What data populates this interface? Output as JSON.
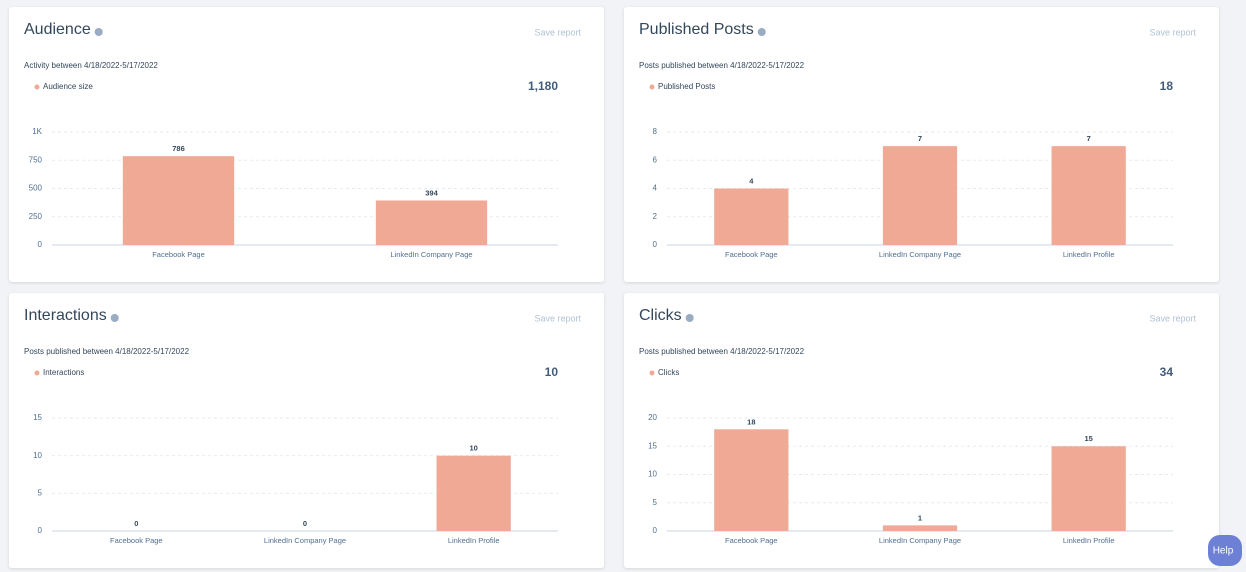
{
  "chart_data": [
    {
      "type": "bar",
      "title": "Audience",
      "action": "Save report",
      "subtitle": "Activity between 4/18/2022-5/17/2022",
      "total": {
        "value": 1180,
        "label": "1,180"
      },
      "categories": [
        "Facebook Page",
        "LinkedIn Company Page"
      ],
      "series": [
        {
          "name": "Audience size",
          "color": "#f0a994",
          "values": [
            786,
            394
          ]
        }
      ],
      "ylim": [
        0,
        1000
      ],
      "yticks": [
        0,
        250,
        500,
        750,
        {
          "value": 1000,
          "label": "1K"
        }
      ],
      "grid": true
    },
    {
      "type": "bar",
      "title": "Published Posts",
      "action": "Save report",
      "subtitle": "Posts published between 4/18/2022-5/17/2022",
      "total": 18,
      "categories": [
        "Facebook Page",
        "LinkedIn Company Page",
        "LinkedIn Profile"
      ],
      "series": [
        {
          "name": "Published Posts",
          "color": "#f0a994",
          "values": [
            4,
            7,
            7
          ]
        }
      ],
      "ylim": [
        0,
        8
      ],
      "yticks": [
        0,
        2,
        4,
        6,
        8
      ],
      "grid": true
    },
    {
      "type": "bar",
      "title": "Interactions",
      "action": "Save report",
      "subtitle": "Posts published between 4/18/2022-5/17/2022",
      "total": 10,
      "categories": [
        "Facebook Page",
        "LinkedIn Company Page",
        "LinkedIn Profile"
      ],
      "series": [
        {
          "name": "Interactions",
          "color": "#f0a994",
          "values": [
            0,
            0,
            10
          ]
        }
      ],
      "ylim": [
        0,
        15
      ],
      "yticks": [
        0,
        5,
        10,
        15
      ],
      "grid": true
    },
    {
      "type": "bar",
      "title": "Clicks",
      "action": "Save report",
      "subtitle": "Posts published between 4/18/2022-5/17/2022",
      "total": 34,
      "categories": [
        "Facebook Page",
        "LinkedIn Company Page",
        "LinkedIn Profile"
      ],
      "series": [
        {
          "name": "Clicks",
          "color": "#f0a994",
          "values": [
            18,
            1,
            15
          ]
        }
      ],
      "ylim": [
        0,
        20
      ],
      "yticks": [
        0,
        5,
        10,
        15,
        20
      ],
      "grid": true
    }
  ],
  "help_button": "Help"
}
